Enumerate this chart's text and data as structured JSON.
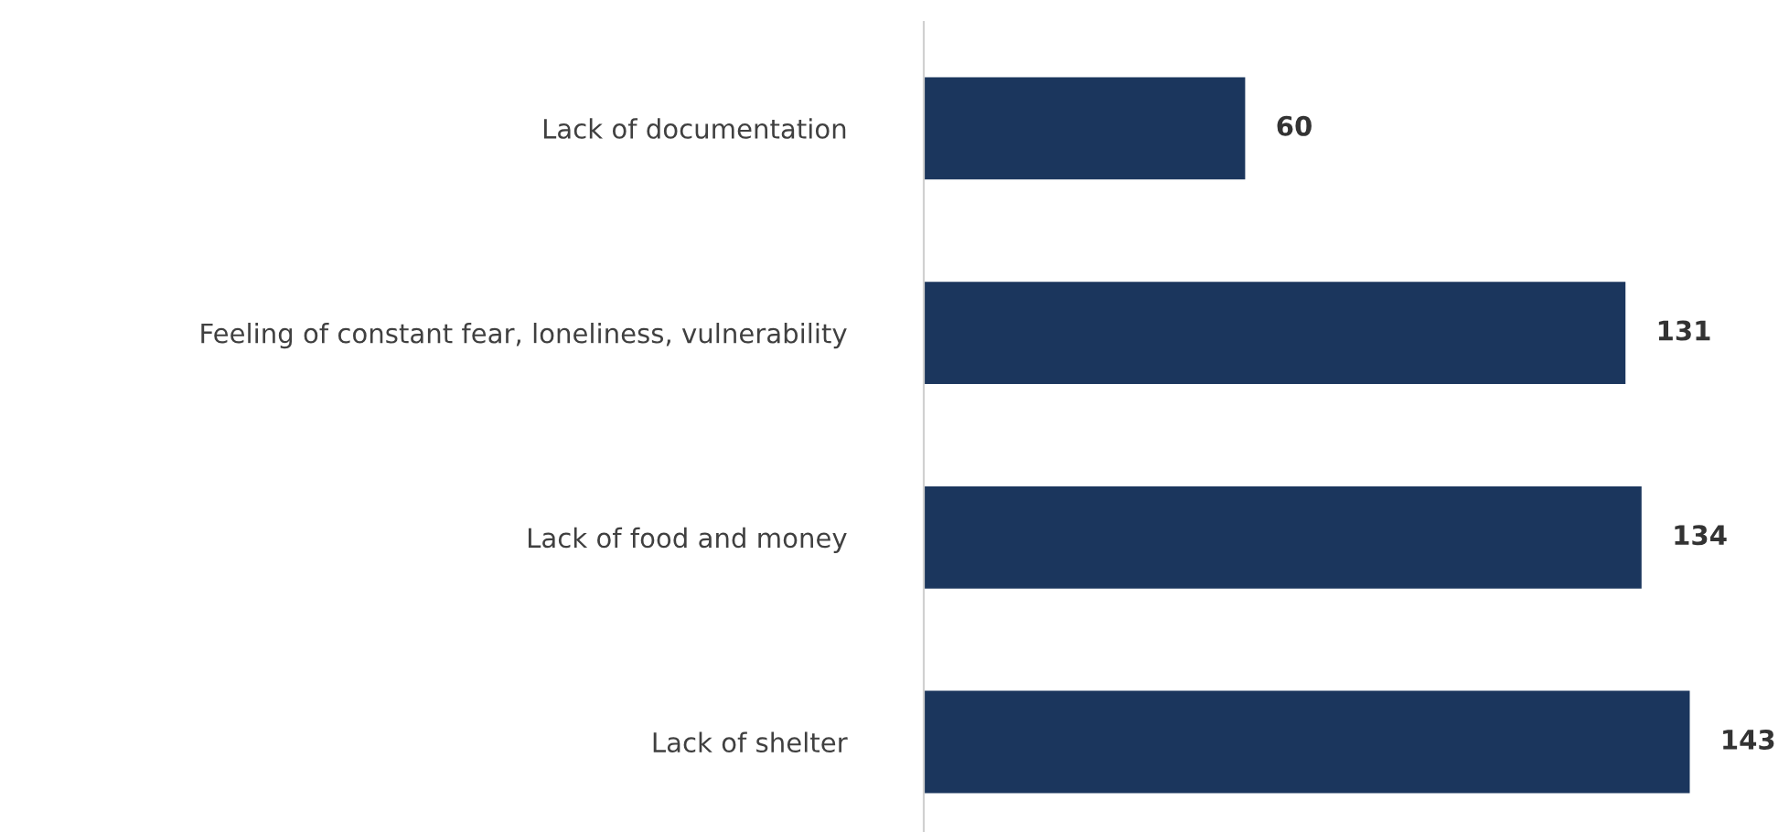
{
  "chart_data": {
    "type": "bar",
    "orientation": "horizontal",
    "categories": [
      "Lack of documentation",
      "Feeling of constant fear, loneliness, vulnerability",
      "Lack of food and money",
      "Lack of shelter"
    ],
    "values": [
      60,
      131,
      134,
      143
    ],
    "color": "#1b365d",
    "data_labels": true
  }
}
